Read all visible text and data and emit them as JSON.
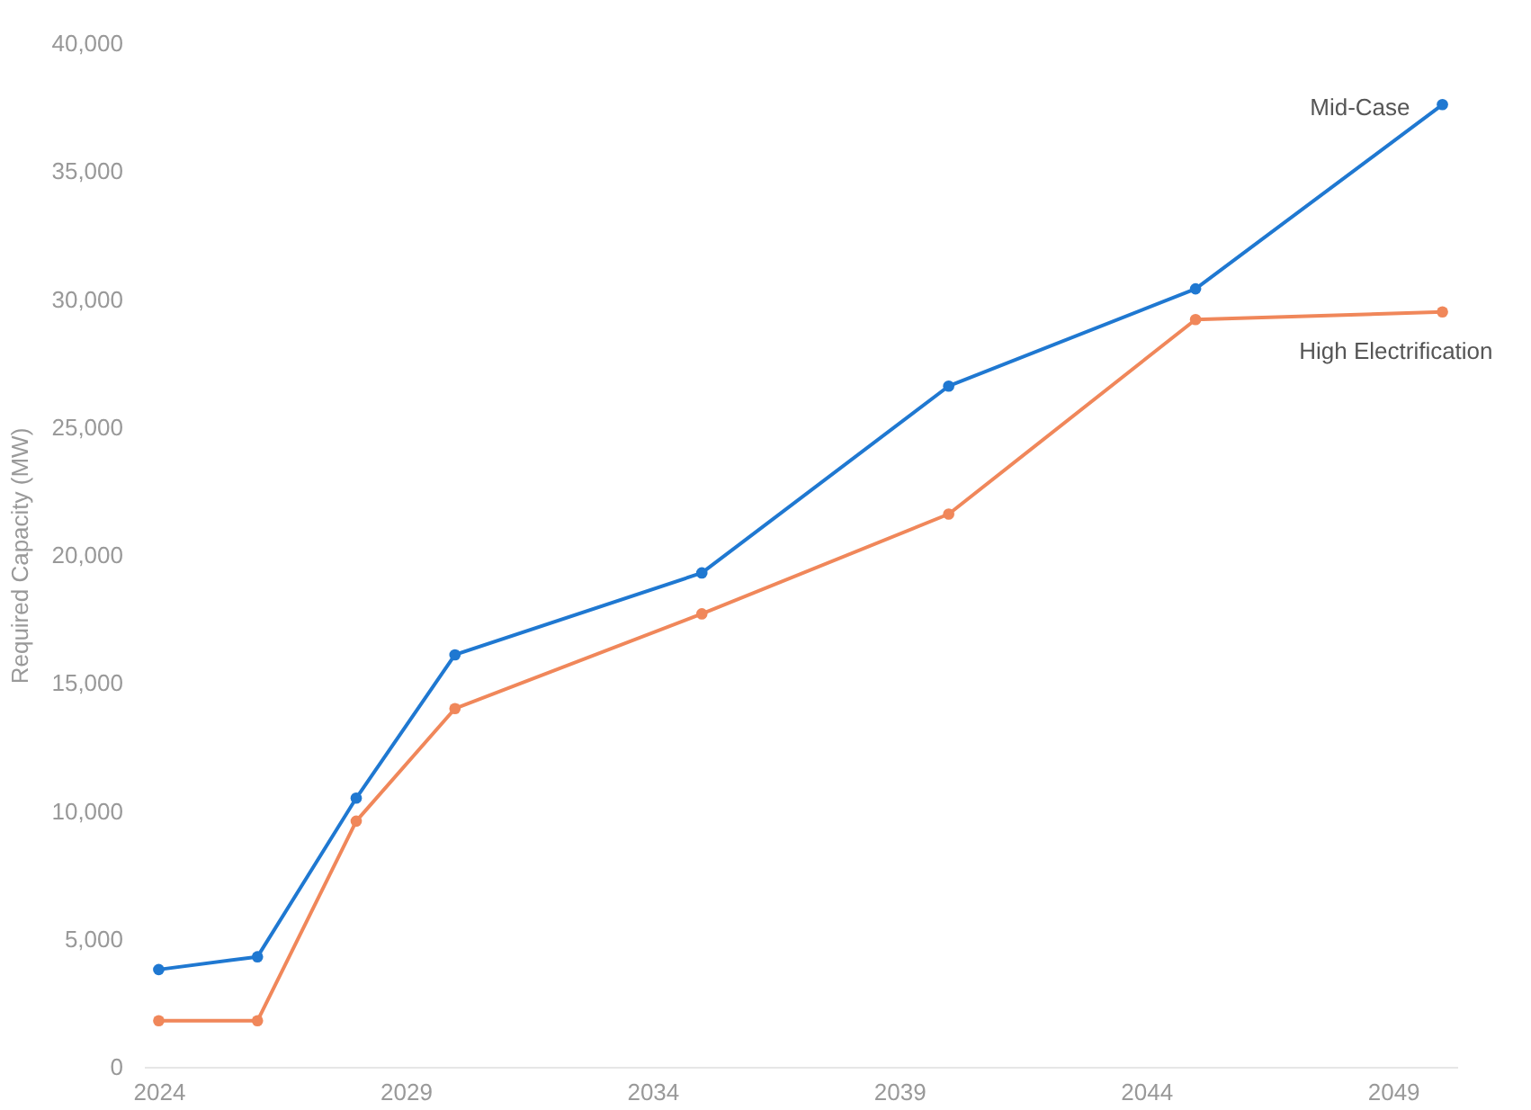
{
  "chart_data": {
    "type": "line",
    "ylabel": "Required Capacity (MW)",
    "x": [
      2024,
      2026,
      2028,
      2030,
      2035,
      2040,
      2045,
      2050
    ],
    "series": [
      {
        "name": "Mid-Case",
        "color": "#1f78d1",
        "values": [
          3800,
          4300,
          10500,
          16100,
          19300,
          26600,
          30400,
          37600
        ]
      },
      {
        "name": "High Electrification",
        "color": "#f0875a",
        "values": [
          1800,
          1800,
          9600,
          14000,
          17700,
          21600,
          29200,
          29500
        ]
      }
    ],
    "xlim": [
      2023.7,
      2050.3
    ],
    "xticks": [
      2024,
      2029,
      2034,
      2039,
      2044,
      2049
    ],
    "ylim": [
      0,
      40000
    ],
    "yticks": [
      0,
      {
        "value": 5000,
        "label": "5,000"
      },
      {
        "value": 10000,
        "label": "10,000"
      },
      {
        "value": 15000,
        "label": "15,000"
      },
      {
        "value": 20000,
        "label": "20,000"
      },
      {
        "value": 25000,
        "label": "25,000"
      },
      {
        "value": 30000,
        "label": "30,000"
      },
      {
        "value": 35000,
        "label": "35,000"
      },
      {
        "value": 40000,
        "label": "40,000"
      }
    ],
    "grid": false,
    "legend": false,
    "marker": "circle",
    "line_style": "solid"
  }
}
